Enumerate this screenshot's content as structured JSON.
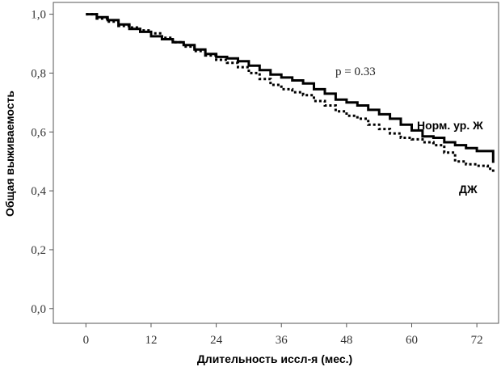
{
  "chart_data": {
    "type": "line",
    "title": "",
    "xlabel": "Длительность иссл-я (мес.)",
    "ylabel": "Общая выживаемость",
    "xlim": [
      -6,
      76
    ],
    "ylim": [
      -0.05,
      1.04
    ],
    "x_ticks": [
      0,
      12,
      24,
      36,
      48,
      60,
      72
    ],
    "x_tick_labels": [
      "0",
      "12",
      "24",
      "36",
      "48",
      "60",
      "72"
    ],
    "y_ticks": [
      0.0,
      0.2,
      0.4,
      0.6,
      0.8,
      1.0
    ],
    "y_tick_labels": [
      "0,0",
      "0,2",
      "0,4",
      "0,6",
      "0,8",
      "1,0"
    ],
    "annotation": "p = 0.33",
    "grid": false,
    "series": [
      {
        "name": "Норм. ур. Ж",
        "style": "solid",
        "color": "#000000",
        "x": [
          0,
          2,
          4,
          6,
          8,
          10,
          12,
          14,
          16,
          18,
          20,
          22,
          24,
          26,
          28,
          30,
          32,
          34,
          36,
          38,
          40,
          42,
          44,
          46,
          48,
          50,
          52,
          54,
          56,
          58,
          60,
          62,
          64,
          66,
          68,
          70,
          72,
          74,
          75
        ],
        "y": [
          1.0,
          0.99,
          0.98,
          0.965,
          0.95,
          0.94,
          0.925,
          0.915,
          0.905,
          0.895,
          0.88,
          0.865,
          0.855,
          0.85,
          0.84,
          0.825,
          0.81,
          0.795,
          0.785,
          0.775,
          0.765,
          0.745,
          0.73,
          0.71,
          0.7,
          0.69,
          0.675,
          0.66,
          0.645,
          0.625,
          0.605,
          0.585,
          0.58,
          0.565,
          0.555,
          0.545,
          0.535,
          0.535,
          0.495
        ]
      },
      {
        "name": "ДЖ",
        "style": "dotted",
        "color": "#000000",
        "x": [
          0,
          2,
          4,
          6,
          8,
          10,
          12,
          14,
          16,
          18,
          20,
          22,
          24,
          26,
          28,
          30,
          32,
          34,
          36,
          38,
          40,
          42,
          44,
          46,
          48,
          50,
          52,
          54,
          56,
          58,
          60,
          62,
          64,
          66,
          68,
          70,
          72,
          74,
          75
        ],
        "y": [
          1.0,
          0.985,
          0.975,
          0.96,
          0.955,
          0.945,
          0.935,
          0.92,
          0.905,
          0.89,
          0.875,
          0.86,
          0.845,
          0.835,
          0.82,
          0.8,
          0.78,
          0.76,
          0.745,
          0.735,
          0.725,
          0.705,
          0.69,
          0.67,
          0.655,
          0.645,
          0.625,
          0.61,
          0.595,
          0.58,
          0.575,
          0.565,
          0.555,
          0.53,
          0.5,
          0.49,
          0.485,
          0.475,
          0.46
        ]
      }
    ]
  }
}
